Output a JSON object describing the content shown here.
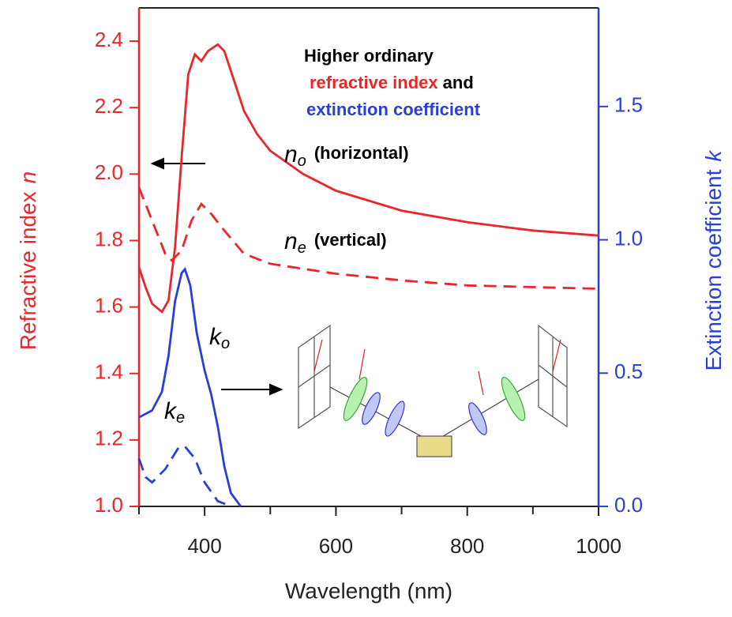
{
  "chart_data": {
    "type": "line",
    "x_label": "Wavelength (nm)",
    "y_label": "Refractive index",
    "y_label_symbol": "n",
    "y2_label": "Extinction coefficient",
    "y2_label_symbol": "k",
    "xlim": [
      300,
      1000
    ],
    "xticks": [
      400,
      600,
      800,
      1000
    ],
    "x_minor_ticks": [
      300,
      500,
      700,
      900
    ],
    "ylim": [
      1.0,
      2.5
    ],
    "yticks": [
      {
        "value": 1,
        "label": "1.0"
      },
      1.2,
      1.4,
      1.6,
      1.8,
      {
        "value": 2,
        "label": "2.0"
      },
      2.2,
      2.4
    ],
    "y2lim": [
      0,
      1.87
    ],
    "y2ticks": [
      {
        "value": 0,
        "label": "0.0"
      },
      0.5,
      {
        "value": 1,
        "label": "1.0"
      },
      1.5
    ],
    "left_axis_color": "#e8262b",
    "right_axis_color": "#2a3fd6",
    "annotation": {
      "line1": "Higher ordinary",
      "line2a": "refractive index",
      "line2b": "and",
      "line3": "extinction coefficient"
    },
    "series": [
      {
        "symbol": "n",
        "subscript": "o",
        "note": "(horizontal)",
        "color": "#e8262b",
        "dashed": false,
        "x": [
          300,
          310,
          320,
          335,
          345,
          355,
          365,
          375,
          385,
          395,
          405,
          420,
          430,
          445,
          460,
          480,
          500,
          550,
          600,
          700,
          800,
          900,
          1000
        ],
        "values": [
          1.72,
          1.66,
          1.61,
          1.585,
          1.62,
          1.78,
          2.05,
          2.3,
          2.36,
          2.34,
          2.37,
          2.39,
          2.37,
          2.28,
          2.19,
          2.12,
          2.07,
          2.0,
          1.95,
          1.89,
          1.855,
          1.83,
          1.815
        ]
      },
      {
        "symbol": "n",
        "subscript": "e",
        "note": "(vertical)",
        "color": "#e8262b",
        "dashed": true,
        "x": [
          300,
          320,
          340,
          350,
          365,
          380,
          395,
          410,
          430,
          460,
          500,
          600,
          700,
          800,
          900,
          1000
        ],
        "values": [
          1.96,
          1.86,
          1.76,
          1.74,
          1.77,
          1.86,
          1.91,
          1.88,
          1.83,
          1.76,
          1.73,
          1.7,
          1.68,
          1.665,
          1.66,
          1.655
        ]
      },
      {
        "symbol": "k",
        "subscript": "o",
        "color": "#2a3fd6",
        "dashed": false,
        "axis": "y2",
        "x": [
          300,
          320,
          335,
          345,
          355,
          365,
          370,
          378,
          388,
          400,
          410,
          420,
          430,
          440,
          455
        ],
        "values": [
          0.334,
          0.36,
          0.43,
          0.565,
          0.77,
          0.875,
          0.89,
          0.83,
          0.65,
          0.51,
          0.42,
          0.3,
          0.15,
          0.05,
          0
        ]
      },
      {
        "symbol": "k",
        "subscript": "e",
        "color": "#2a3fd6",
        "dashed": true,
        "axis": "y2",
        "x": [
          300,
          310,
          320,
          340,
          360,
          370,
          385,
          400,
          420,
          440
        ],
        "values": [
          0.18,
          0.11,
          0.09,
          0.14,
          0.22,
          0.225,
          0.18,
          0.09,
          0.02,
          0
        ]
      }
    ]
  }
}
